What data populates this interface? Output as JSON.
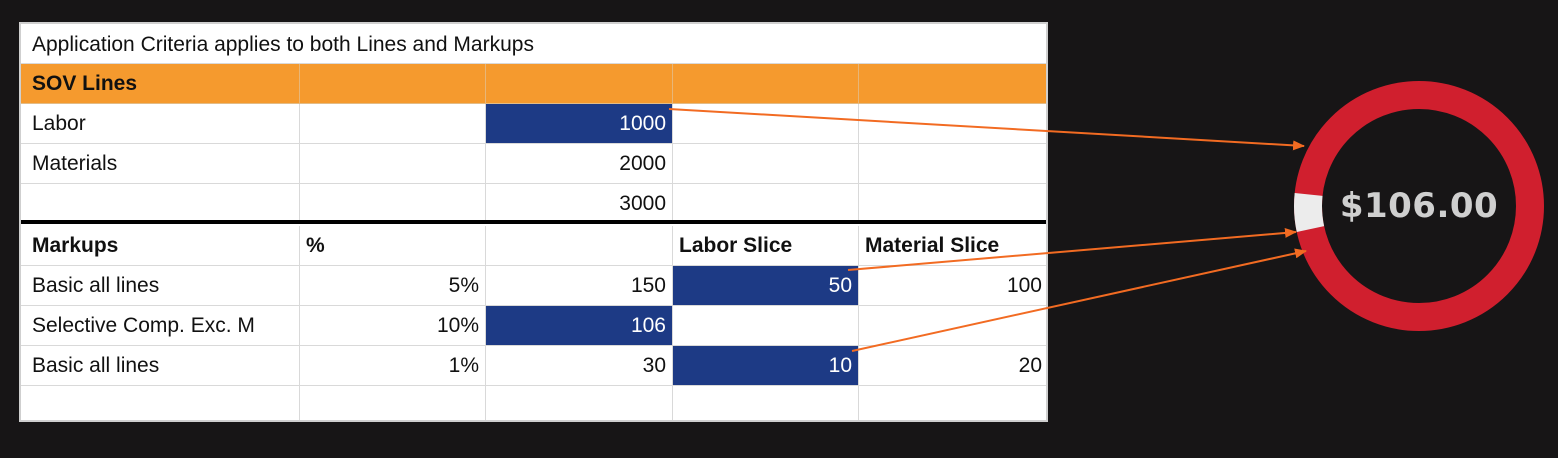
{
  "sheet": {
    "title": "Application Criteria applies to both Lines and Markups",
    "sov_header": "SOV Lines",
    "sov_rows": [
      {
        "label": "Labor",
        "amount": "1000"
      },
      {
        "label": "Materials",
        "amount": "2000"
      },
      {
        "label": "",
        "amount": "3000"
      }
    ],
    "markup_header": {
      "label": "Markups",
      "percent": "%",
      "labor_slice": "Labor Slice",
      "material_slice": "Material Slice"
    },
    "markup_rows": [
      {
        "label": "Basic all lines",
        "percent": "5%",
        "amount": "150",
        "labor": "50",
        "material": "100"
      },
      {
        "label": "Selective Comp. Exc. M",
        "percent": "10%",
        "amount": "106",
        "labor": "",
        "material": ""
      },
      {
        "label": "Basic all lines",
        "percent": "1%",
        "amount": "30",
        "labor": "10",
        "material": "20"
      }
    ]
  },
  "ring": {
    "value_label": "$106.00",
    "ring_color": "#d01f2e",
    "segment_color": "#ececec",
    "segment_fraction": 0.05
  },
  "colors": {
    "header_orange": "#f59a2e",
    "selection_blue": "#1d3a85",
    "arrow_orange": "#f26b22",
    "background": "#171516"
  }
}
